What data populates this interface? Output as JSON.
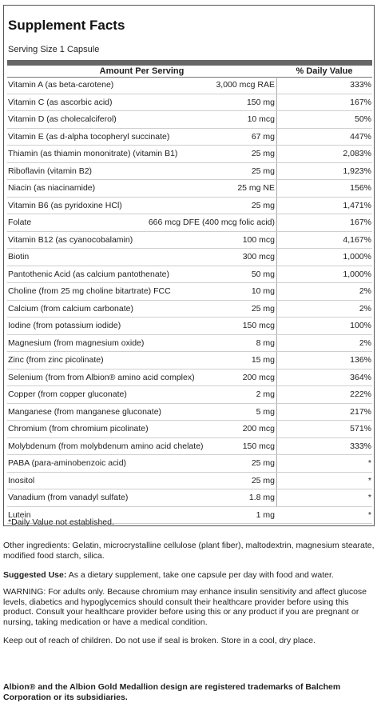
{
  "title": "Supplement Facts",
  "serving_size": "Serving Size 1 Capsule",
  "header": {
    "amount": "Amount Per Serving",
    "dv": "% Daily Value"
  },
  "rows": [
    {
      "name": "Vitamin A (as beta-carotene)",
      "amount": "3,000 mcg RAE",
      "dv": "333%"
    },
    {
      "name": "Vitamin C (as ascorbic acid)",
      "amount": "150 mg",
      "dv": "167%"
    },
    {
      "name": "Vitamin D (as cholecalciferol)",
      "amount": "10 mcg",
      "dv": "50%"
    },
    {
      "name": "Vitamin E (as d-alpha tocopheryl succinate)",
      "amount": "67 mg",
      "dv": "447%"
    },
    {
      "name": "Thiamin (as thiamin mononitrate) (vitamin B1)",
      "amount": "25 mg",
      "dv": "2,083%"
    },
    {
      "name": "Riboflavin (vitamin B2)",
      "amount": "25 mg",
      "dv": "1,923%"
    },
    {
      "name": "Niacin (as niacinamide)",
      "amount": "25 mg NE",
      "dv": "156%"
    },
    {
      "name": "Vitamin B6 (as pyridoxine HCl)",
      "amount": "25 mg",
      "dv": "1,471%"
    },
    {
      "name": "Folate",
      "amount": "666 mcg DFE (400 mcg folic acid)",
      "dv": "167%"
    },
    {
      "name": "Vitamin B12 (as cyanocobalamin)",
      "amount": "100 mcg",
      "dv": "4,167%"
    },
    {
      "name": "Biotin",
      "amount": "300 mcg",
      "dv": "1,000%"
    },
    {
      "name": "Pantothenic Acid (as calcium pantothenate)",
      "amount": "50 mg",
      "dv": "1,000%"
    },
    {
      "name": "Choline (from 25 mg choline bitartrate) FCC",
      "amount": "10 mg",
      "dv": "2%"
    },
    {
      "name": "Calcium (from calcium carbonate)",
      "amount": "25 mg",
      "dv": "2%"
    },
    {
      "name": "Iodine (from potassium iodide)",
      "amount": "150 mcg",
      "dv": "100%"
    },
    {
      "name": "Magnesium (from magnesium oxide)",
      "amount": "8 mg",
      "dv": "2%"
    },
    {
      "name": "Zinc (from zinc picolinate)",
      "amount": "15 mg",
      "dv": "136%"
    },
    {
      "name": "Selenium (from from Albion® amino acid complex)",
      "amount": "200 mcg",
      "dv": "364%"
    },
    {
      "name": "Copper (from copper gluconate)",
      "amount": "2 mg",
      "dv": "222%"
    },
    {
      "name": "Manganese (from manganese gluconate)",
      "amount": "5 mg",
      "dv": "217%"
    },
    {
      "name": "Chromium (from chromium picolinate)",
      "amount": "200 mcg",
      "dv": "571%"
    },
    {
      "name": "Molybdenum (from molybdenum amino acid chelate)",
      "amount": "150 mcg",
      "dv": "333%"
    },
    {
      "name": "PABA (para-aminobenzoic acid)",
      "amount": "25 mg",
      "dv": "*"
    },
    {
      "name": "Inositol",
      "amount": "25 mg",
      "dv": "*"
    },
    {
      "name": "Vanadium (from vanadyl sulfate)",
      "amount": "1.8 mg",
      "dv": "*"
    },
    {
      "name": "Lutein",
      "amount": "1 mg",
      "dv": "*"
    }
  ],
  "footnote": "*Daily Value not established.",
  "other_ingredients": "Other ingredients: Gelatin, microcrystalline cellulose (plant fiber), maltodextrin, magnesium stearate, modified food starch, silica.",
  "suggested_use_label": "Suggested Use:",
  "suggested_use": " As a dietary supplement, take one capsule per day with food and water.",
  "warning": "WARNING: For adults only. Because chromium may enhance insulin sensitivity and affect glucose levels, diabetics and hypoglycemics should consult their healthcare provider before using this product. Consult your healthcare provider before using this or any product if you are pregnant or nursing, taking medication or have a medical condition.",
  "keep_out": "Keep out of reach of children. Do not use if seal is broken. Store in a cool, dry place.",
  "trademark": "Albion® and the Albion Gold Medallion design are registered trademarks of Balchem Corporation or its subsidiaries."
}
